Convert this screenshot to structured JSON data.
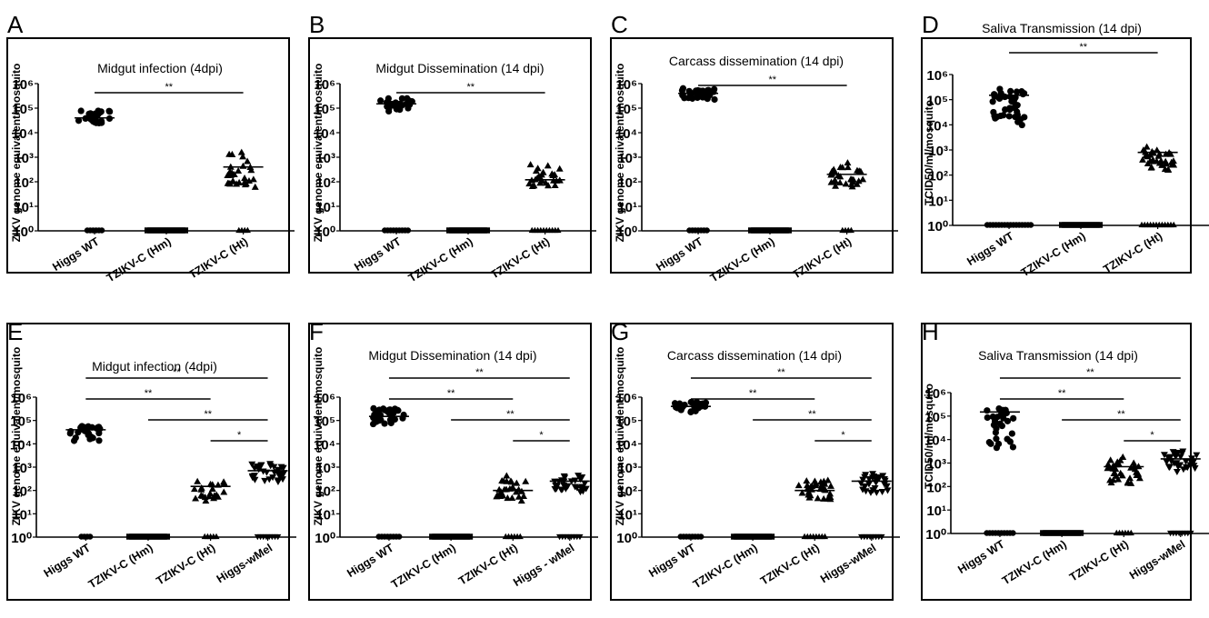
{
  "figure": {
    "row1_xlabels": [
      "Higgs WT",
      "TZIKV-C (Hm)",
      "TZIKV-C (Ht)"
    ],
    "colors": {
      "axis": "#000000",
      "marker": "#000000",
      "background": "#ffffff"
    }
  },
  "chart_data": [
    {
      "panel": "A",
      "type": "scatter",
      "title": "Midgut infection (4dpi)",
      "ylabel": "ZIKV genome equivalent/mosquito",
      "yscale": "log",
      "ytick_labels": [
        "10⁰",
        "10¹",
        "10²",
        "10³",
        "10⁴",
        "10⁵",
        "10⁶"
      ],
      "ylim": [
        1,
        1000000
      ],
      "categories": [
        "Higgs WT",
        "TZIKV-C (Hm)",
        "TZIKV-C (Ht)"
      ],
      "markers": [
        "circle",
        "square",
        "triangle"
      ],
      "positive_range": [
        [
          20000,
          100000
        ],
        null,
        [
          30,
          2000
        ]
      ],
      "positive_n": [
        30,
        0,
        30
      ],
      "zero_n": [
        6,
        14,
        4
      ],
      "means": [
        40000,
        null,
        400
      ],
      "significance": [
        {
          "from": 0,
          "to": 2,
          "label": "**"
        }
      ]
    },
    {
      "panel": "B",
      "type": "scatter",
      "title": "Midgut Dissemination (14 dpi)",
      "ylabel": "ZIKV genome equivalent/mosquito",
      "yscale": "log",
      "ytick_labels": [
        "10⁰",
        "10¹",
        "10²",
        "10³",
        "10⁴",
        "10⁵",
        "10⁶"
      ],
      "ylim": [
        1,
        1000000
      ],
      "categories": [
        "Higgs WT",
        "TZIKV-C (Hm)",
        "TZIKV-C (Ht)"
      ],
      "markers": [
        "circle",
        "square",
        "triangle"
      ],
      "positive_range": [
        [
          60000,
          300000
        ],
        null,
        [
          40,
          600
        ]
      ],
      "positive_n": [
        28,
        0,
        26
      ],
      "zero_n": [
        9,
        14,
        10
      ],
      "means": [
        150000,
        null,
        120
      ],
      "significance": [
        {
          "from": 0,
          "to": 2,
          "label": "**"
        }
      ]
    },
    {
      "panel": "C",
      "type": "scatter",
      "title": "Carcass dissemination (14 dpi)",
      "ylabel": "ZIKV genome equivalent/mosquito",
      "yscale": "log",
      "ytick_labels": [
        "10⁰",
        "10¹",
        "10²",
        "10³",
        "10⁴",
        "10⁵",
        "10⁶"
      ],
      "ylim": [
        1,
        1000000
      ],
      "categories": [
        "Higgs WT",
        "TZIKV-C (Hm)",
        "TZIKV-C (Ht)"
      ],
      "markers": [
        "circle",
        "square",
        "triangle"
      ],
      "positive_range": [
        [
          200000,
          700000
        ],
        null,
        [
          40,
          700
        ]
      ],
      "positive_n": [
        32,
        0,
        30
      ],
      "zero_n": [
        7,
        14,
        4
      ],
      "means": [
        400000,
        null,
        200
      ],
      "significance": [
        {
          "from": 0,
          "to": 2,
          "label": "**"
        }
      ]
    },
    {
      "panel": "D",
      "type": "scatter",
      "title": "Saliva Transmission (14 dpi)",
      "ylabel": "TCID50/ml/mosquito",
      "yscale": "log",
      "ytick_labels": [
        "10⁰",
        "10¹",
        "10²",
        "10³",
        "10⁴",
        "10⁵",
        "10⁶"
      ],
      "ylim": [
        1,
        1000000
      ],
      "categories": [
        "Higgs WT",
        "TZIKV-C (Hm)",
        "TZIKV-C (Ht)"
      ],
      "markers": [
        "circle",
        "square",
        "triangle"
      ],
      "positive_range": [
        [
          8000,
          400000
        ],
        null,
        [
          100,
          1500
        ]
      ],
      "positive_n": [
        40,
        0,
        34
      ],
      "zero_n": [
        16,
        14,
        12
      ],
      "means": [
        150000,
        null,
        800
      ],
      "significance": [
        {
          "from": 0,
          "to": 2,
          "label": "**"
        }
      ]
    },
    {
      "panel": "E",
      "type": "scatter",
      "title": "Midgut infection (4dpi)",
      "ylabel": "ZIKV genome equivalent/mosquito",
      "yscale": "log",
      "ytick_labels": [
        "10⁰",
        "10¹",
        "10²",
        "10³",
        "10⁴",
        "10⁵",
        "10⁶"
      ],
      "ylim": [
        1,
        1000000
      ],
      "categories": [
        "Higgs WT",
        "TZIKV-C (Hm)",
        "TZIKV-C (Ht)",
        "Higgs-wMel"
      ],
      "markers": [
        "circle",
        "square",
        "triangle",
        "triangle-down"
      ],
      "positive_range": [
        [
          10000,
          70000
        ],
        null,
        [
          30,
          400
        ],
        [
          200,
          2000
        ]
      ],
      "positive_n": [
        24,
        0,
        22,
        32
      ],
      "zero_n": [
        4,
        14,
        5,
        8
      ],
      "means": [
        40000,
        null,
        150,
        700
      ],
      "significance": [
        {
          "from": 0,
          "to": 3,
          "label": "**"
        },
        {
          "from": 0,
          "to": 2,
          "label": "**"
        },
        {
          "from": 1,
          "to": 3,
          "label": "**"
        },
        {
          "from": 2,
          "to": 3,
          "label": "*"
        }
      ]
    },
    {
      "panel": "F",
      "type": "scatter",
      "title": "Midgut Dissemination (14 dpi)",
      "ylabel": "ZIKV genome equivalent/mosquito",
      "yscale": "log",
      "ytick_labels": [
        "10⁰",
        "10¹",
        "10²",
        "10³",
        "10⁴",
        "10⁵",
        "10⁶"
      ],
      "ylim": [
        1,
        1000000
      ],
      "categories": [
        "Higgs WT",
        "TZIKV-C (Hm)",
        "TZIKV-C (Ht)",
        "Higgs - wMel"
      ],
      "markers": [
        "circle",
        "square",
        "triangle",
        "triangle-down"
      ],
      "positive_range": [
        [
          60000,
          400000
        ],
        null,
        [
          30,
          500
        ],
        [
          80,
          600
        ]
      ],
      "positive_n": [
        32,
        0,
        28,
        30
      ],
      "zero_n": [
        8,
        14,
        6,
        8
      ],
      "means": [
        150000,
        null,
        100,
        250
      ],
      "significance": [
        {
          "from": 0,
          "to": 3,
          "label": "**"
        },
        {
          "from": 0,
          "to": 2,
          "label": "**"
        },
        {
          "from": 1,
          "to": 3,
          "label": "**"
        },
        {
          "from": 2,
          "to": 3,
          "label": "*"
        }
      ]
    },
    {
      "panel": "G",
      "type": "scatter",
      "title": "Carcass dissemination (14 dpi)",
      "ylabel": "ZIKV genome equivalent/mosquito",
      "yscale": "log",
      "ytick_labels": [
        "10⁰",
        "10¹",
        "10²",
        "10³",
        "10⁴",
        "10⁵",
        "10⁶"
      ],
      "ylim": [
        1,
        1000000
      ],
      "categories": [
        "Higgs WT",
        "TZIKV-C (Hm)",
        "TZIKV-C (Ht)",
        "Higgs-wMel"
      ],
      "markers": [
        "circle",
        "square",
        "triangle",
        "triangle-down"
      ],
      "positive_range": [
        [
          200000,
          700000
        ],
        null,
        [
          30,
          300
        ],
        [
          60,
          900
        ]
      ],
      "positive_n": [
        30,
        0,
        32,
        30
      ],
      "zero_n": [
        8,
        14,
        8,
        8
      ],
      "means": [
        400000,
        null,
        100,
        250
      ],
      "significance": [
        {
          "from": 0,
          "to": 3,
          "label": "**"
        },
        {
          "from": 0,
          "to": 2,
          "label": "**"
        },
        {
          "from": 1,
          "to": 3,
          "label": "**"
        },
        {
          "from": 2,
          "to": 3,
          "label": "*"
        }
      ]
    },
    {
      "panel": "H",
      "type": "scatter",
      "title": "Saliva Transmission (14 dpi)",
      "ylabel": "TCID50/ml/mosquito",
      "yscale": "log",
      "ytick_labels": [
        "10⁰",
        "10¹",
        "10²",
        "10³",
        "10⁴",
        "10⁵",
        "10⁶"
      ],
      "ylim": [
        1,
        1000000
      ],
      "categories": [
        "Higgs WT",
        "TZIKV-C (Hm)",
        "TZIKV-C (Ht)",
        "Higgs-wMel"
      ],
      "markers": [
        "circle",
        "square",
        "triangle",
        "triangle-down"
      ],
      "positive_range": [
        [
          3000,
          500000
        ],
        null,
        [
          100,
          2000
        ],
        [
          300,
          4000
        ]
      ],
      "positive_n": [
        32,
        0,
        34,
        32
      ],
      "zero_n": [
        10,
        14,
        6,
        8
      ],
      "means": [
        150000,
        null,
        700,
        1500
      ],
      "significance": [
        {
          "from": 0,
          "to": 3,
          "label": "**"
        },
        {
          "from": 0,
          "to": 2,
          "label": "**"
        },
        {
          "from": 1,
          "to": 3,
          "label": "**"
        },
        {
          "from": 2,
          "to": 3,
          "label": "*"
        }
      ]
    }
  ]
}
